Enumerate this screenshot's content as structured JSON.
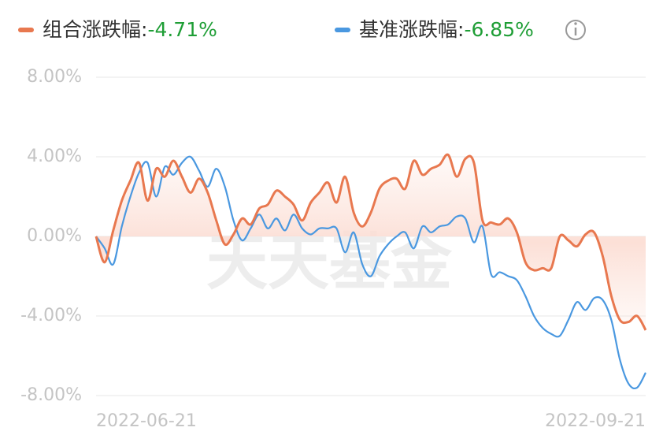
{
  "chart_data": {
    "type": "line",
    "watermark": "天天基金",
    "categories": [
      "2022-06-21",
      null,
      null,
      null,
      null,
      null,
      null,
      null,
      null,
      null,
      null,
      null,
      null,
      null,
      null,
      null,
      null,
      null,
      null,
      null,
      null,
      null,
      null,
      null,
      null,
      null,
      null,
      null,
      null,
      null,
      null,
      null,
      null,
      null,
      null,
      null,
      null,
      null,
      null,
      null,
      null,
      null,
      null,
      null,
      null,
      null,
      null,
      null,
      null,
      null,
      null,
      null,
      null,
      null,
      null,
      null,
      null,
      null,
      null,
      null,
      null,
      null,
      null,
      null,
      "2022-09-21"
    ],
    "series": [
      {
        "name": "组合涨跌幅:",
        "total_label": "-4.71%",
        "color": "#e8784f",
        "values": [
          0,
          -1.3,
          0.3,
          1.8,
          2.8,
          3.7,
          1.8,
          3.4,
          3.0,
          3.8,
          3.0,
          2.2,
          2.9,
          2.2,
          0.8,
          -0.4,
          0.1,
          0.9,
          0.6,
          1.4,
          1.6,
          2.3,
          2.0,
          1.6,
          0.8,
          1.7,
          2.2,
          2.7,
          1.7,
          3.0,
          1.2,
          0.5,
          1.2,
          2.4,
          2.8,
          2.9,
          2.4,
          3.8,
          3.1,
          3.4,
          3.6,
          4.1,
          3.0,
          3.9,
          3.7,
          0.8,
          0.7,
          0.6,
          0.9,
          0.2,
          -1.3,
          -1.7,
          -1.6,
          -1.6,
          0.0,
          -0.2,
          -0.5,
          0.1,
          0.2,
          -1.0,
          -3.0,
          -4.2,
          -4.3,
          -4.0,
          -4.71
        ]
      },
      {
        "name": "基准涨跌幅:",
        "total_label": "-6.85%",
        "color": "#4a98e0",
        "values": [
          0,
          -0.6,
          -1.4,
          0.5,
          2.0,
          3.2,
          3.7,
          2.0,
          3.5,
          3.1,
          3.7,
          4.0,
          3.3,
          2.5,
          3.4,
          2.5,
          0.8,
          -0.2,
          0.4,
          1.1,
          0.4,
          0.9,
          0.3,
          1.1,
          0.4,
          0.1,
          0.4,
          0.4,
          0.4,
          -0.8,
          0.2,
          -1.4,
          -2.0,
          -1.0,
          -0.4,
          0.0,
          0.2,
          -0.6,
          0.5,
          0.2,
          0.5,
          0.6,
          1.0,
          0.9,
          -0.3,
          0.5,
          -1.9,
          -1.8,
          -2.0,
          -2.2,
          -3.0,
          -4.0,
          -4.6,
          -4.9,
          -5.0,
          -4.2,
          -3.3,
          -3.7,
          -3.1,
          -3.2,
          -4.2,
          -6.2,
          -7.4,
          -7.6,
          -6.85
        ]
      }
    ],
    "total_color": "#1f9e36",
    "ylim": [
      -8,
      8
    ],
    "yticks": [
      {
        "value": 8,
        "label": "8.00%"
      },
      {
        "value": 4,
        "label": "4.00%"
      },
      {
        "value": 0,
        "label": "0.00%"
      },
      {
        "value": -4,
        "label": "-4.00%"
      },
      {
        "value": -8,
        "label": "-8.00%"
      }
    ],
    "grid": true,
    "area_under": 0
  }
}
